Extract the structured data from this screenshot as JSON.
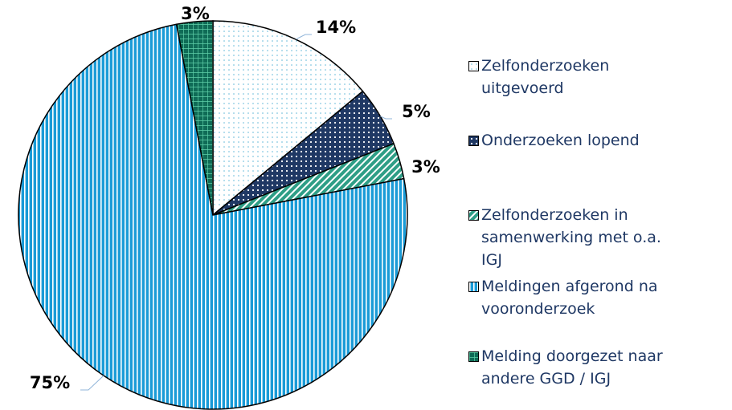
{
  "chart_data": {
    "type": "pie",
    "categories": [
      "Zelfonderzoeken uitgevoerd",
      "Onderzoeken lopend",
      "Zelfonderzoeken in samenwerking met o.a. IGJ",
      "Meldingen afgerond na vooronderzoek",
      "Melding doorgezet naar andere GGD / IGJ"
    ],
    "values": [
      14,
      5,
      3,
      75,
      3
    ],
    "value_labels": [
      "14%",
      "5%",
      "3%",
      "75%",
      "3%"
    ],
    "colors": [
      "#5fb8d8",
      "#1f3864",
      "#2e9e86",
      "#1a9bd7",
      "#0f6b56"
    ],
    "legend": "right"
  }
}
